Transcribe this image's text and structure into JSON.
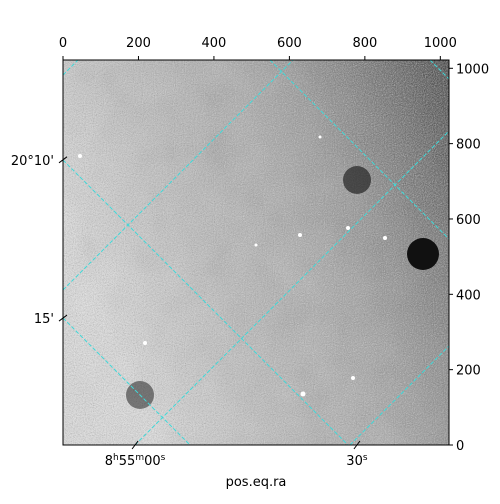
{
  "chart_data": {
    "type": "image",
    "xlabel": "pos.eq.ra",
    "xlim": [
      0,
      1023
    ],
    "ylim": [
      0,
      1022
    ],
    "xticks": [
      0,
      200,
      400,
      600,
      800,
      1000
    ],
    "yticks": [
      0,
      200,
      400,
      600,
      800,
      1000
    ],
    "ra_ticks": [
      {
        "value": 191,
        "label": "8h55m00s"
      },
      {
        "value": 779,
        "label": "30s"
      }
    ],
    "dec_ticks": [
      {
        "value": 757,
        "label": "20°10'"
      },
      {
        "value": 337,
        "label": "15'"
      }
    ],
    "grid_color": "#3fd9d9"
  }
}
